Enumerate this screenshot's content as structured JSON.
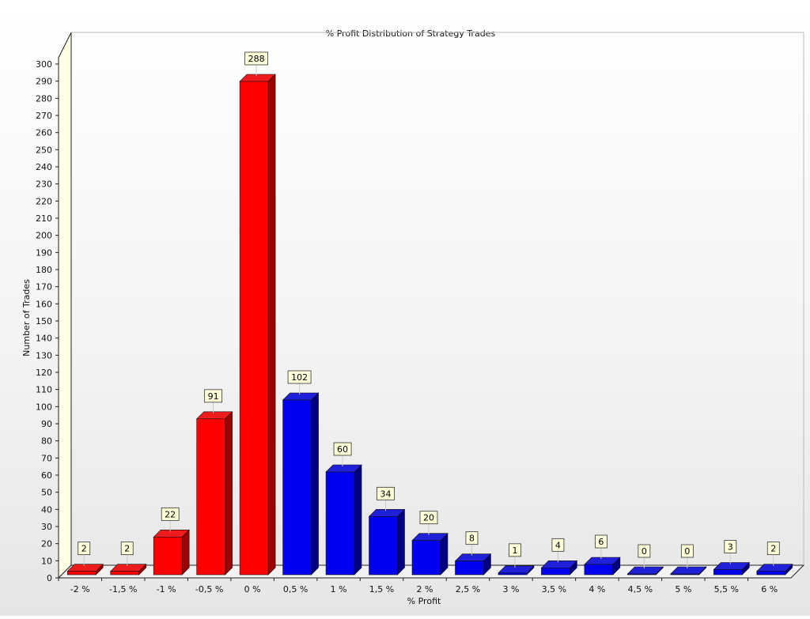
{
  "chart_data": {
    "type": "bar",
    "title": "% Profit Distribution of Strategy Trades",
    "xlabel": "% Profit",
    "ylabel": "Number of Trades",
    "categories": [
      "-2 %",
      "-1,5 %",
      "-1 %",
      "-0,5 %",
      "0 %",
      "0,5 %",
      "1 %",
      "1,5 %",
      "2 %",
      "2,5 %",
      "3 %",
      "3,5 %",
      "4 %",
      "4,5 %",
      "5 %",
      "5,5 %",
      "6 %"
    ],
    "values": [
      2,
      2,
      22,
      91,
      288,
      102,
      60,
      34,
      20,
      8,
      1,
      4,
      6,
      0,
      0,
      3,
      2
    ],
    "ylim": [
      0,
      300
    ],
    "y_tick_step": 10,
    "grid": false,
    "legend": "none",
    "style_3d": true,
    "colors": {
      "negative": "#ff0000",
      "negative_top": "#ee1c1c",
      "negative_side": "#9a0000",
      "positive": "#0000ee",
      "positive_top": "#2020d8",
      "positive_side": "#000080",
      "left_wall": "#ffffe6",
      "floor": "#f2f2f2",
      "label_bg": "#ffffd9"
    },
    "series_split": "values for categories below 0 % are red, 0 % is red, above 0 % are blue"
  }
}
